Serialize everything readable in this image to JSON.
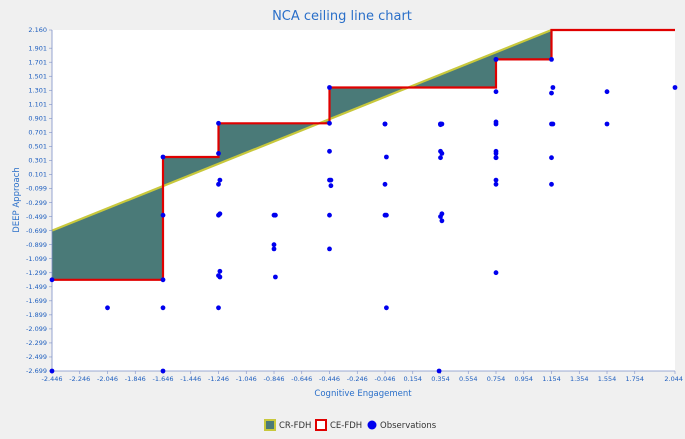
{
  "chart_data": {
    "type": "scatter",
    "title": "NCA ceiling line chart",
    "xlabel": "Cognitive Engagement",
    "ylabel": "DEEP Approach",
    "xlim": [
      -2.446,
      2.044
    ],
    "ylim": [
      -2.699,
      2.16
    ],
    "x_ticks": [
      "-2.446",
      "-2.246",
      "-2.046",
      "-1.846",
      "-1.646",
      "-1.446",
      "-1.246",
      "-1.046",
      "-0.846",
      "-0.646",
      "-0.446",
      "-0.246",
      "-0.046",
      "0.154",
      "0.354",
      "0.554",
      "0.754",
      "0.954",
      "1.154",
      "1.354",
      "1.554",
      "1.754",
      "2.044"
    ],
    "y_ticks": [
      "2.160",
      "1.901",
      "1.701",
      "1.501",
      "1.301",
      "1.101",
      "0.901",
      "0.701",
      "0.501",
      "0.301",
      "0.101",
      "-0.099",
      "-0.299",
      "-0.499",
      "-0.699",
      "-0.899",
      "-1.099",
      "-1.299",
      "-1.499",
      "-1.699",
      "-1.899",
      "-2.099",
      "-2.299",
      "-2.499",
      "-2.699"
    ],
    "legend": [
      "CR-FDH",
      "CE-FDH",
      "Observations"
    ],
    "legend_position": "bottom-center",
    "colors": {
      "cr_fill": "#4a7a78",
      "cr_line": "#c8c83c",
      "ce_line": "#e00000",
      "points": "#0000ee",
      "axis": "#7c8fc7"
    },
    "cr_fdh": {
      "x": [
        -2.446,
        1.154
      ],
      "y": [
        -0.699,
        2.16
      ]
    },
    "ce_fdh": {
      "x": [
        -2.446,
        -1.646,
        -1.646,
        -1.246,
        -1.246,
        -0.446,
        -0.446,
        0.754,
        0.754,
        1.154,
        1.154,
        2.044
      ],
      "y": [
        -1.399,
        -1.399,
        0.351,
        0.351,
        0.831,
        0.831,
        1.341,
        1.341,
        1.741,
        1.741,
        2.16,
        2.16
      ]
    },
    "series": [
      {
        "x": [
          -2.446,
          -2.446,
          -2.046,
          -1.646,
          -1.646,
          -1.646,
          -1.646,
          -1.646,
          -1.246,
          -1.246,
          -1.236,
          -1.246,
          -1.236,
          -1.246,
          -1.236,
          -1.246,
          -1.236,
          -1.246,
          -0.846,
          -0.836,
          -0.846,
          -0.846,
          -0.836,
          -0.446,
          -0.446,
          -0.436,
          -0.446,
          -0.436,
          -0.446,
          -0.446,
          -0.446,
          -0.046,
          -0.036,
          -0.046,
          -0.036,
          -0.046,
          -0.036,
          -0.046,
          0.354,
          0.364,
          0.354,
          0.364,
          0.354,
          0.364,
          0.354,
          0.364,
          0.344,
          0.354,
          0.354,
          0.754,
          0.754,
          0.754,
          0.754,
          0.754,
          0.754,
          0.754,
          0.754,
          0.754,
          0.754,
          0.754,
          0.754,
          1.154,
          1.164,
          1.154,
          1.154,
          1.164,
          1.154,
          1.154,
          1.554,
          1.554,
          2.044
        ],
        "y": [
          -1.399,
          -2.699,
          -1.799,
          0.351,
          -0.479,
          -1.399,
          -1.799,
          -2.699,
          0.401,
          0.831,
          0.021,
          -0.039,
          -0.459,
          -0.479,
          -1.279,
          -1.339,
          -1.359,
          -1.799,
          -0.479,
          -0.479,
          -0.899,
          -0.959,
          -1.359,
          1.341,
          0.831,
          0.021,
          0.021,
          -0.059,
          0.431,
          -0.479,
          -0.959,
          0.821,
          0.351,
          -0.039,
          -0.479,
          -0.479,
          -1.799,
          0.821,
          0.821,
          0.821,
          0.431,
          0.401,
          0.341,
          -0.459,
          -0.499,
          -0.559,
          -2.699,
          0.811,
          0.821,
          1.741,
          1.281,
          0.851,
          0.821,
          0.431,
          0.401,
          0.341,
          0.341,
          0.021,
          -0.039,
          -1.299,
          1.741,
          1.741,
          1.341,
          1.261,
          0.821,
          0.821,
          0.341,
          -0.039,
          1.281,
          0.821,
          1.341
        ]
      }
    ]
  }
}
